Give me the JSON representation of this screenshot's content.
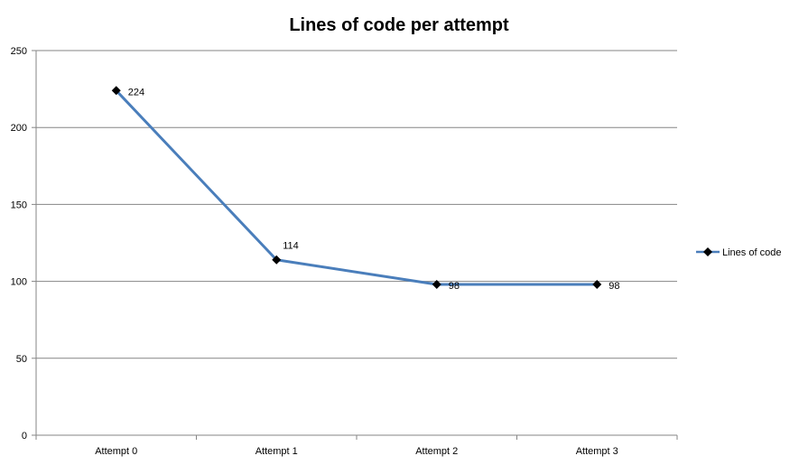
{
  "chart_data": {
    "type": "line",
    "title": "Lines of code per attempt",
    "categories": [
      "Attempt 0",
      "Attempt 1",
      "Attempt 2",
      "Attempt 3"
    ],
    "series": [
      {
        "name": "Lines of code",
        "values": [
          224,
          114,
          98,
          98
        ],
        "color": "#4A7EBB",
        "marker": "diamond",
        "marker_color": "#000000"
      }
    ],
    "data_labels": [
      "224",
      "114",
      "98",
      "98"
    ],
    "y_ticks": [
      "0",
      "50",
      "100",
      "150",
      "200",
      "250"
    ],
    "ylim": [
      0,
      250
    ],
    "grid": true,
    "grid_color": "#868686",
    "legend_position": "right"
  }
}
